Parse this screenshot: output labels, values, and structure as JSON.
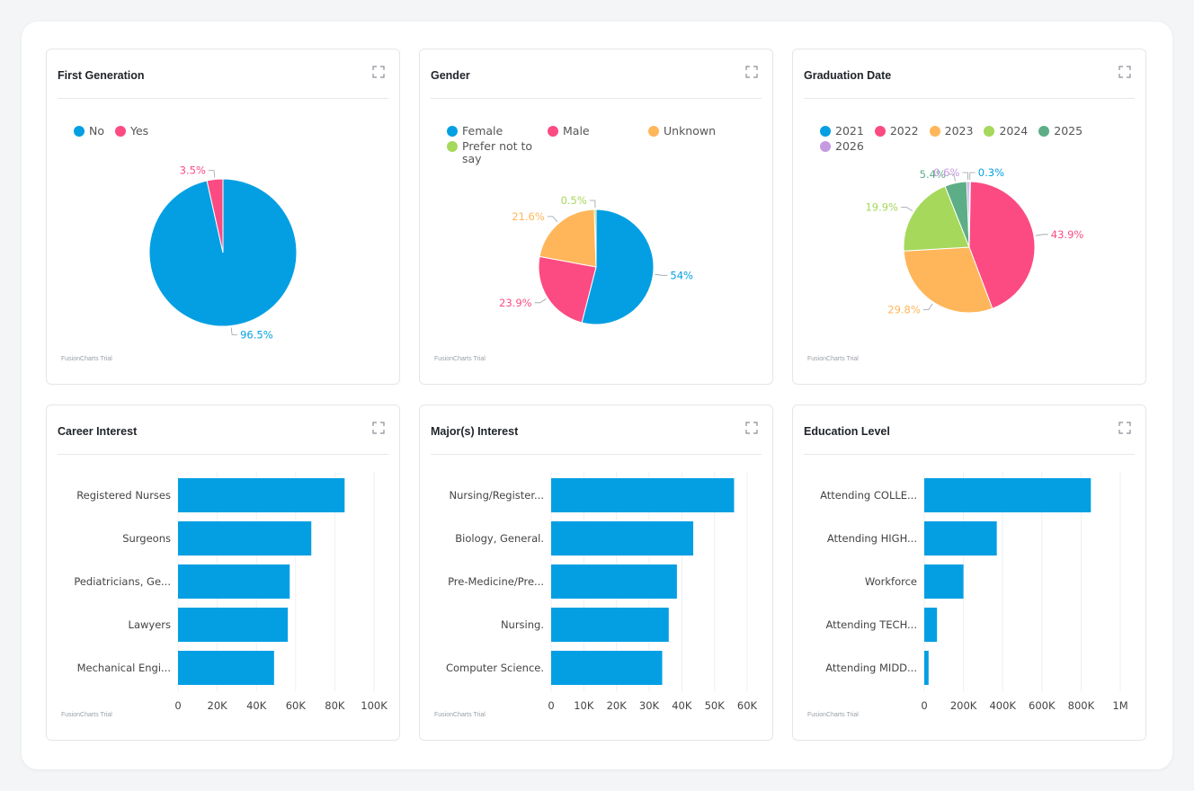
{
  "colors": {
    "blue": "#049fe3",
    "pink": "#fb4b82",
    "orange": "#ffb65b",
    "green": "#a6d85b",
    "teal": "#5dae86",
    "purple": "#c69ae0"
  },
  "expand_icon": "expand-icon",
  "cards": [
    {
      "title": "First Generation",
      "trial": "FusionCharts Trial",
      "legend": [
        {
          "label": "No",
          "color": "#049fe3"
        },
        {
          "label": "Yes",
          "color": "#fb4b82"
        }
      ]
    },
    {
      "title": "Gender",
      "trial": "FusionCharts Trial",
      "legend": [
        {
          "label": "Female",
          "color": "#049fe3"
        },
        {
          "label": "Male",
          "color": "#fb4b82"
        },
        {
          "label": "Unknown",
          "color": "#ffb65b"
        },
        {
          "label": "Prefer not to say",
          "color": "#a6d85b"
        }
      ]
    },
    {
      "title": "Graduation Date",
      "trial": "FusionCharts Trial",
      "legend": [
        {
          "label": "2021",
          "color": "#049fe3"
        },
        {
          "label": "2022",
          "color": "#fb4b82"
        },
        {
          "label": "2023",
          "color": "#ffb65b"
        },
        {
          "label": "2024",
          "color": "#a6d85b"
        },
        {
          "label": "2025",
          "color": "#5dae86"
        },
        {
          "label": "2026",
          "color": "#c69ae0"
        }
      ]
    },
    {
      "title": "Career Interest",
      "trial": "FusionCharts Trial"
    },
    {
      "title": "Major(s) Interest",
      "trial": "FusionCharts Trial"
    },
    {
      "title": "Education Level",
      "trial": "FusionCharts Trial"
    }
  ],
  "chart_data": [
    {
      "type": "pie",
      "title": "First Generation",
      "legend_position": "top-left",
      "slices": [
        {
          "label": "No",
          "value": 96.5,
          "display": "96.5%",
          "color": "#049fe3"
        },
        {
          "label": "Yes",
          "value": 3.5,
          "display": "3.5%",
          "color": "#fb4b82"
        }
      ]
    },
    {
      "type": "pie",
      "title": "Gender",
      "legend_position": "top-left",
      "slices": [
        {
          "label": "Female",
          "value": 54,
          "display": "54%",
          "color": "#049fe3"
        },
        {
          "label": "Male",
          "value": 23.9,
          "display": "23.9%",
          "color": "#fb4b82"
        },
        {
          "label": "Unknown",
          "value": 21.6,
          "display": "21.6%",
          "color": "#ffb65b"
        },
        {
          "label": "Prefer not to say",
          "value": 0.5,
          "display": "0.5%",
          "color": "#a6d85b"
        }
      ]
    },
    {
      "type": "pie",
      "title": "Graduation Date",
      "legend_position": "top-left",
      "slices": [
        {
          "label": "2021",
          "value": 0.3,
          "display": "0.3%",
          "color": "#049fe3"
        },
        {
          "label": "2022",
          "value": 43.9,
          "display": "43.9%",
          "color": "#fb4b82"
        },
        {
          "label": "2023",
          "value": 29.8,
          "display": "29.8%",
          "color": "#ffb65b"
        },
        {
          "label": "2024",
          "value": 19.9,
          "display": "19.9%",
          "color": "#a6d85b"
        },
        {
          "label": "2025",
          "value": 5.4,
          "display": "5.4%",
          "color": "#5dae86"
        },
        {
          "label": "2026",
          "value": 0.6,
          "display": "0.6%",
          "color": "#c69ae0"
        }
      ]
    },
    {
      "type": "bar",
      "orientation": "horizontal",
      "title": "Career Interest",
      "categories": [
        "Registered Nurses",
        "Surgeons",
        "Pediatricians, Ge...",
        "Lawyers",
        "Mechanical Engi..."
      ],
      "values": [
        85000,
        68000,
        57000,
        56000,
        49000
      ],
      "xlim": [
        0,
        100000
      ],
      "ticks": [
        0,
        20000,
        40000,
        60000,
        80000,
        100000
      ],
      "tick_labels": [
        "0",
        "20K",
        "40K",
        "60K",
        "80K",
        "100K"
      ],
      "grid": true,
      "color": "#049fe3"
    },
    {
      "type": "bar",
      "orientation": "horizontal",
      "title": "Major(s) Interest",
      "categories": [
        "Nursing/Register...",
        "Biology, General.",
        "Pre-Medicine/Pre...",
        "Nursing.",
        "Computer Science."
      ],
      "values": [
        56000,
        43500,
        38500,
        36000,
        34000
      ],
      "xlim": [
        0,
        60000
      ],
      "ticks": [
        0,
        10000,
        20000,
        30000,
        40000,
        50000,
        60000
      ],
      "tick_labels": [
        "0",
        "10K",
        "20K",
        "30K",
        "40K",
        "50K",
        "60K"
      ],
      "grid": true,
      "color": "#049fe3"
    },
    {
      "type": "bar",
      "orientation": "horizontal",
      "title": "Education Level",
      "categories": [
        "Attending COLLE...",
        "Attending HIGH...",
        "Workforce",
        "Attending TECH...",
        "Attending MIDD..."
      ],
      "values": [
        850000,
        370000,
        200000,
        65000,
        22000
      ],
      "xlim": [
        0,
        1000000
      ],
      "ticks": [
        0,
        200000,
        400000,
        600000,
        800000,
        1000000
      ],
      "tick_labels": [
        "0",
        "200K",
        "400K",
        "600K",
        "800K",
        "1M"
      ],
      "grid": true,
      "color": "#049fe3"
    }
  ]
}
